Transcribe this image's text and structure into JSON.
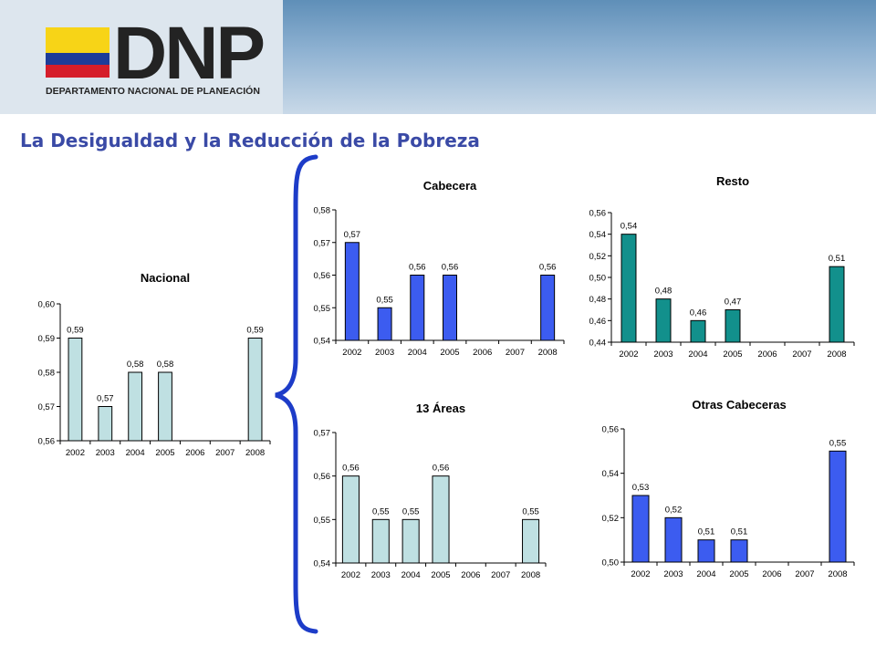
{
  "header": {
    "logo_text": "DNP",
    "logo_subtitle": "DEPARTAMENTO NACIONAL DE PLANEACIÓN",
    "flag_colors": [
      "#f7d417",
      "#1d3c99",
      "#d51d2a"
    ]
  },
  "slide": {
    "title": "La Desigualdad y la Reducción de la Pobreza"
  },
  "chart_data": [
    {
      "id": "nacional",
      "type": "bar",
      "title": "Nacional",
      "categories": [
        "2002",
        "2003",
        "2004",
        "2005",
        "2006",
        "2007",
        "2008"
      ],
      "values": [
        0.59,
        0.57,
        0.58,
        0.58,
        null,
        null,
        0.59
      ],
      "labels": [
        "0,59",
        "0,57",
        "0,58",
        "0,58",
        "",
        "",
        "0,59"
      ],
      "ylim": [
        0.56,
        0.6
      ],
      "yticks": [
        "0,56",
        "0,57",
        "0,58",
        "0,59",
        "0,60"
      ],
      "color": "#bfe0e2",
      "legend": "none",
      "grid": false
    },
    {
      "id": "cabecera",
      "type": "bar",
      "title": "Cabecera",
      "categories": [
        "2002",
        "2003",
        "2004",
        "2005",
        "2006",
        "2007",
        "2008"
      ],
      "values": [
        0.57,
        0.55,
        0.56,
        0.56,
        null,
        null,
        0.56
      ],
      "labels": [
        "0,57",
        "0,55",
        "0,56",
        "0,56",
        "",
        "",
        "0,56"
      ],
      "ylim": [
        0.54,
        0.58
      ],
      "yticks": [
        "0,54",
        "0,55",
        "0,56",
        "0,57",
        "0,58"
      ],
      "color": "#3c5cf0",
      "legend": "none",
      "grid": false
    },
    {
      "id": "resto",
      "type": "bar",
      "title": "Resto",
      "categories": [
        "2002",
        "2003",
        "2004",
        "2005",
        "2006",
        "2007",
        "2008"
      ],
      "values": [
        0.54,
        0.48,
        0.46,
        0.47,
        null,
        null,
        0.51
      ],
      "labels": [
        "0,54",
        "0,48",
        "0,46",
        "0,47",
        "",
        "",
        "0,51"
      ],
      "ylim": [
        0.44,
        0.56
      ],
      "yticks": [
        "0,44",
        "0,46",
        "0,48",
        "0,50",
        "0,52",
        "0,54",
        "0,56"
      ],
      "color": "#12908c",
      "legend": "none",
      "grid": false
    },
    {
      "id": "areas13",
      "type": "bar",
      "title": "13 Áreas",
      "categories": [
        "2002",
        "2003",
        "2004",
        "2005",
        "2006",
        "2007",
        "2008"
      ],
      "values": [
        0.56,
        0.55,
        0.55,
        0.56,
        null,
        null,
        0.55
      ],
      "labels": [
        "0,56",
        "0,55",
        "0,55",
        "0,56",
        "",
        "",
        "0,55"
      ],
      "ylim": [
        0.54,
        0.57
      ],
      "yticks": [
        "0,54",
        "0,55",
        "0,56",
        "0,57"
      ],
      "color": "#bfe0e2",
      "legend": "none",
      "grid": false
    },
    {
      "id": "otras",
      "type": "bar",
      "title": "Otras Cabeceras",
      "categories": [
        "2002",
        "2003",
        "2004",
        "2005",
        "2006",
        "2007",
        "2008"
      ],
      "values": [
        0.53,
        0.52,
        0.51,
        0.51,
        null,
        null,
        0.55
      ],
      "labels": [
        "0,53",
        "0,52",
        "0,51",
        "0,51",
        "",
        "",
        "0,55"
      ],
      "ylim": [
        0.5,
        0.56
      ],
      "yticks": [
        "0,50",
        "0,52",
        "0,54",
        "0,56"
      ],
      "color": "#3c5cf0",
      "legend": "none",
      "grid": false
    }
  ]
}
